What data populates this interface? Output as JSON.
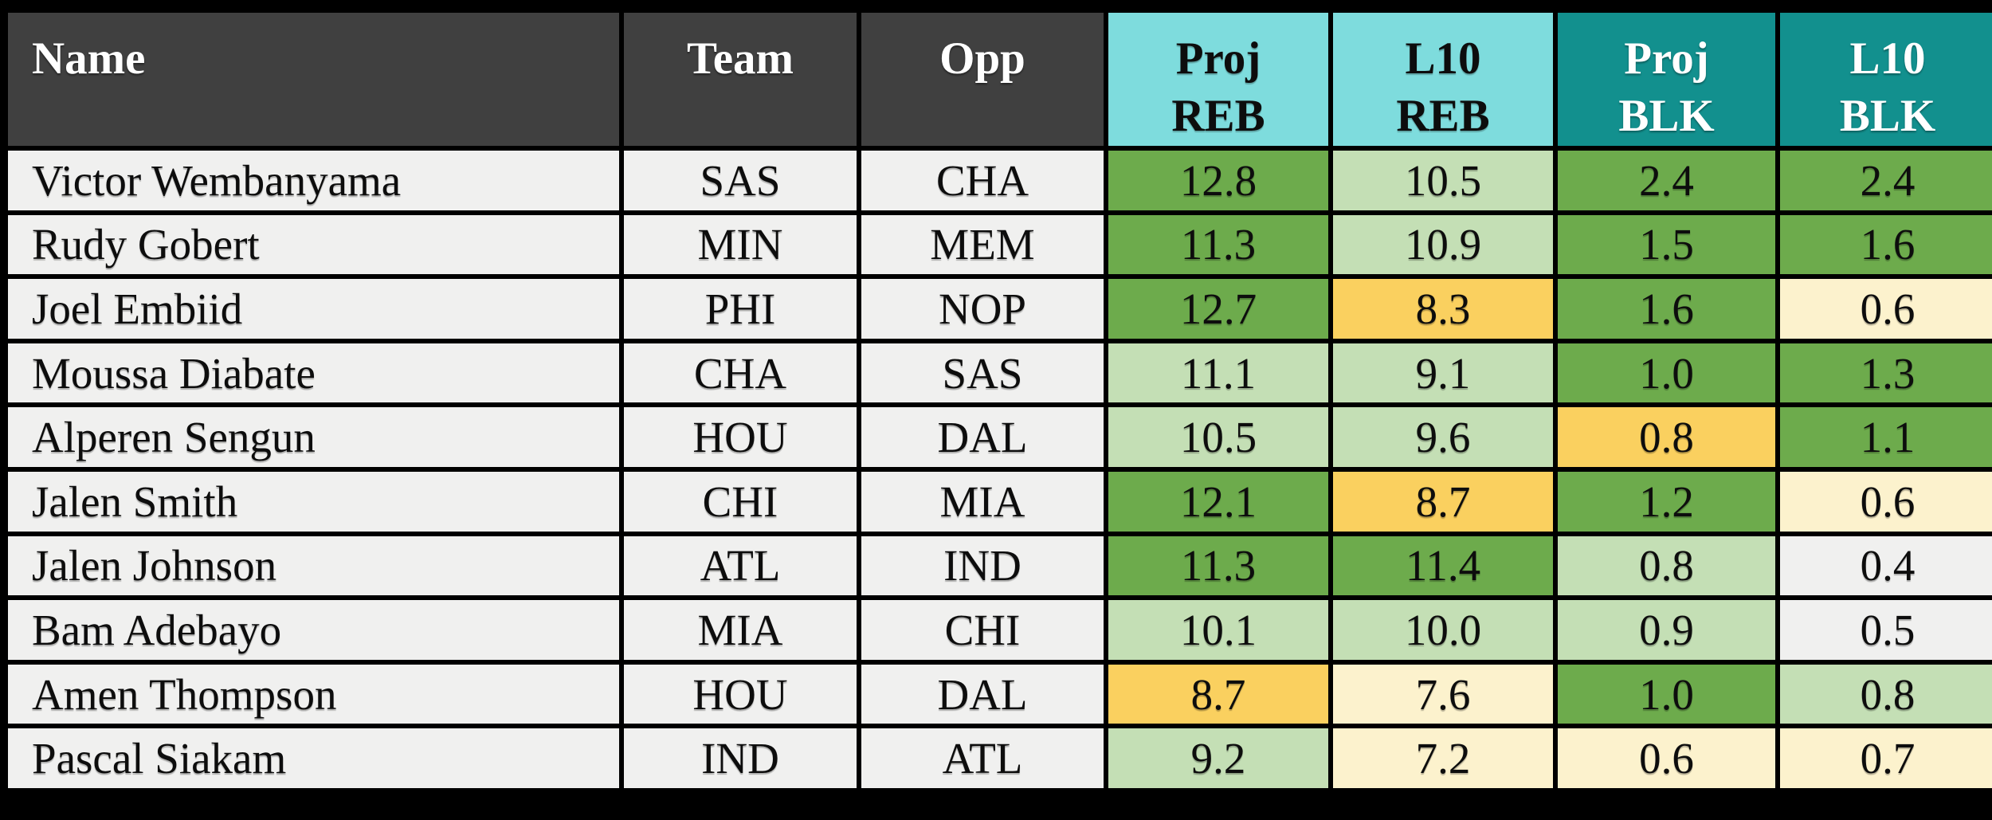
{
  "colors": {
    "background": "#000000",
    "header_dark": "#404040",
    "header_cyan": "#7edcdd",
    "header_teal": "#12908e",
    "row_bg": "#f0f0ef",
    "green": "#6dab4c",
    "light_green": "#c4dfb5",
    "yellow": "#fad05f",
    "cream": "#fcf2cd",
    "none": "#f0f0ef"
  },
  "chart_data": {
    "type": "table",
    "columns": [
      {
        "id": "name",
        "label": "Name",
        "lines": [
          "Name"
        ],
        "header_style": "dark"
      },
      {
        "id": "team",
        "label": "Team",
        "lines": [
          "Team"
        ],
        "header_style": "dark"
      },
      {
        "id": "opp",
        "label": "Opp",
        "lines": [
          "Opp"
        ],
        "header_style": "dark"
      },
      {
        "id": "proj-reb",
        "label": "Proj REB",
        "lines": [
          "Proj",
          "REB"
        ],
        "header_style": "cyan"
      },
      {
        "id": "l10-reb",
        "label": "L10 REB",
        "lines": [
          "L10",
          "REB"
        ],
        "header_style": "cyan"
      },
      {
        "id": "proj-blk",
        "label": "Proj BLK",
        "lines": [
          "Proj",
          "BLK"
        ],
        "header_style": "teal"
      },
      {
        "id": "l10-blk",
        "label": "L10 BLK",
        "lines": [
          "L10",
          "BLK"
        ],
        "header_style": "teal"
      }
    ],
    "rows": [
      {
        "name": "Victor Wembanyama",
        "team": "SAS",
        "opp": "CHA",
        "stats": [
          {
            "v": "12.8",
            "c": "green"
          },
          {
            "v": "10.5",
            "c": "light_green"
          },
          {
            "v": "2.4",
            "c": "green"
          },
          {
            "v": "2.4",
            "c": "green"
          }
        ]
      },
      {
        "name": "Rudy Gobert",
        "team": "MIN",
        "opp": "MEM",
        "stats": [
          {
            "v": "11.3",
            "c": "green"
          },
          {
            "v": "10.9",
            "c": "light_green"
          },
          {
            "v": "1.5",
            "c": "green"
          },
          {
            "v": "1.6",
            "c": "green"
          }
        ]
      },
      {
        "name": "Joel Embiid",
        "team": "PHI",
        "opp": "NOP",
        "stats": [
          {
            "v": "12.7",
            "c": "green"
          },
          {
            "v": "8.3",
            "c": "yellow"
          },
          {
            "v": "1.6",
            "c": "green"
          },
          {
            "v": "0.6",
            "c": "cream"
          }
        ]
      },
      {
        "name": "Moussa Diabate",
        "team": "CHA",
        "opp": "SAS",
        "stats": [
          {
            "v": "11.1",
            "c": "light_green"
          },
          {
            "v": "9.1",
            "c": "light_green"
          },
          {
            "v": "1.0",
            "c": "green"
          },
          {
            "v": "1.3",
            "c": "green"
          }
        ]
      },
      {
        "name": "Alperen Sengun",
        "team": "HOU",
        "opp": "DAL",
        "stats": [
          {
            "v": "10.5",
            "c": "light_green"
          },
          {
            "v": "9.6",
            "c": "light_green"
          },
          {
            "v": "0.8",
            "c": "yellow"
          },
          {
            "v": "1.1",
            "c": "green"
          }
        ]
      },
      {
        "name": "Jalen Smith",
        "team": "CHI",
        "opp": "MIA",
        "stats": [
          {
            "v": "12.1",
            "c": "green"
          },
          {
            "v": "8.7",
            "c": "yellow"
          },
          {
            "v": "1.2",
            "c": "green"
          },
          {
            "v": "0.6",
            "c": "cream"
          }
        ]
      },
      {
        "name": "Jalen Johnson",
        "team": "ATL",
        "opp": "IND",
        "stats": [
          {
            "v": "11.3",
            "c": "green"
          },
          {
            "v": "11.4",
            "c": "green"
          },
          {
            "v": "0.8",
            "c": "light_green"
          },
          {
            "v": "0.4",
            "c": "none"
          }
        ]
      },
      {
        "name": "Bam Adebayo",
        "team": "MIA",
        "opp": "CHI",
        "stats": [
          {
            "v": "10.1",
            "c": "light_green"
          },
          {
            "v": "10.0",
            "c": "light_green"
          },
          {
            "v": "0.9",
            "c": "light_green"
          },
          {
            "v": "0.5",
            "c": "none"
          }
        ]
      },
      {
        "name": "Amen Thompson",
        "team": "HOU",
        "opp": "DAL",
        "stats": [
          {
            "v": "8.7",
            "c": "yellow"
          },
          {
            "v": "7.6",
            "c": "cream"
          },
          {
            "v": "1.0",
            "c": "green"
          },
          {
            "v": "0.8",
            "c": "light_green"
          }
        ]
      },
      {
        "name": "Pascal Siakam",
        "team": "IND",
        "opp": "ATL",
        "stats": [
          {
            "v": "9.2",
            "c": "light_green"
          },
          {
            "v": "7.2",
            "c": "cream"
          },
          {
            "v": "0.6",
            "c": "cream"
          },
          {
            "v": "0.7",
            "c": "cream"
          }
        ]
      }
    ]
  }
}
